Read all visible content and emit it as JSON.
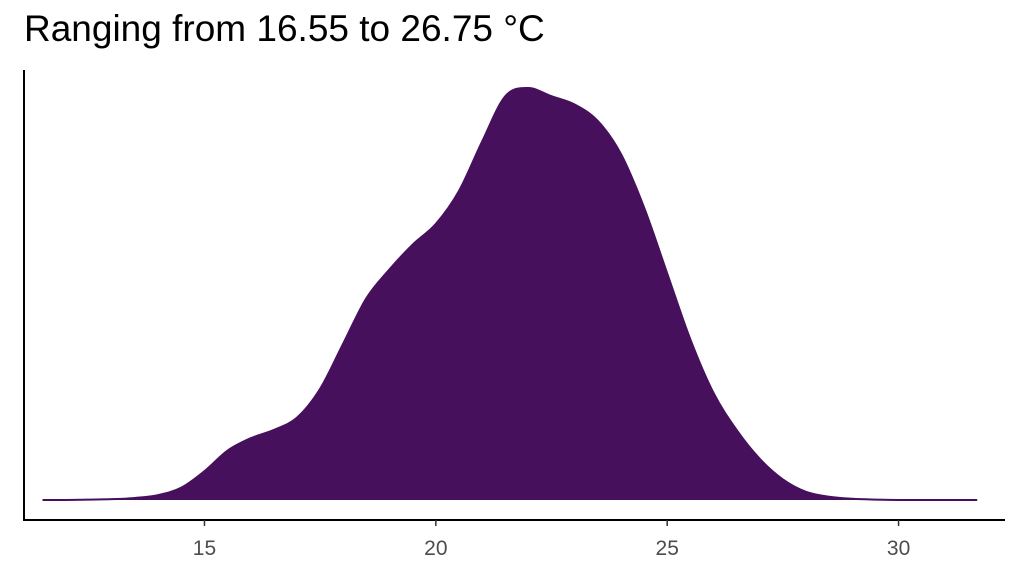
{
  "chart_data": {
    "type": "area",
    "title": "Ranging from 16.55 to 26.75 °C",
    "xlabel": "",
    "ylabel": "",
    "xlim": [
      11.1,
      32.3
    ],
    "ylim": [
      0,
      1.05
    ],
    "xticks": [
      15,
      20,
      25,
      30
    ],
    "fill_color": "#46105c",
    "grid": false,
    "x": [
      11.5,
      12.0,
      12.5,
      13.0,
      13.5,
      14.0,
      14.5,
      15.0,
      15.5,
      16.0,
      16.5,
      17.0,
      17.5,
      18.0,
      18.5,
      19.0,
      19.5,
      20.0,
      20.5,
      21.0,
      21.5,
      22.0,
      22.5,
      23.0,
      23.5,
      24.0,
      24.5,
      25.0,
      25.5,
      26.0,
      26.5,
      27.0,
      27.5,
      28.0,
      28.5,
      29.0,
      29.5,
      30.0,
      30.5,
      31.0,
      31.7
    ],
    "y": [
      0.0,
      0.0,
      0.001,
      0.002,
      0.005,
      0.012,
      0.03,
      0.07,
      0.12,
      0.15,
      0.17,
      0.2,
      0.27,
      0.38,
      0.49,
      0.56,
      0.62,
      0.67,
      0.75,
      0.87,
      0.98,
      1.0,
      0.98,
      0.96,
      0.92,
      0.84,
      0.71,
      0.55,
      0.39,
      0.26,
      0.17,
      0.1,
      0.05,
      0.02,
      0.008,
      0.003,
      0.001,
      0.0,
      0.0,
      0.0,
      0.0
    ]
  }
}
